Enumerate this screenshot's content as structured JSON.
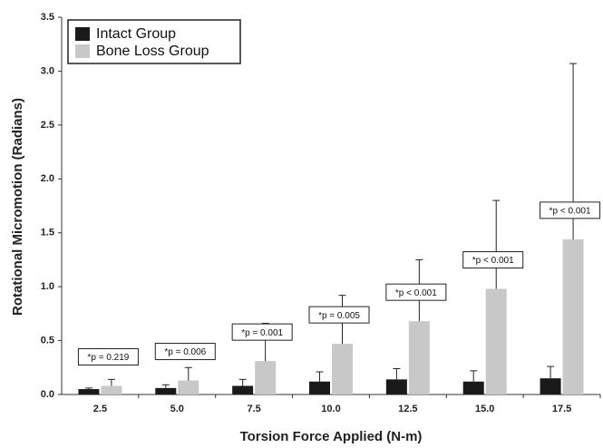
{
  "chart_data": {
    "type": "bar",
    "x_label": "Torsion Force Applied (N-m)",
    "y_label": "Rotational Micromotion (Radians)",
    "categories": [
      "2.5",
      "5.0",
      "7.5",
      "10.0",
      "12.5",
      "15.0",
      "17.5"
    ],
    "series": [
      {
        "name": "Intact Group",
        "color": "#1a1a1a",
        "values": [
          0.05,
          0.06,
          0.08,
          0.12,
          0.14,
          0.12,
          0.15
        ],
        "errors": [
          0.01,
          0.03,
          0.06,
          0.09,
          0.1,
          0.1,
          0.11
        ]
      },
      {
        "name": "Bone Loss Group",
        "color": "#c8c8c8",
        "values": [
          0.08,
          0.13,
          0.31,
          0.47,
          0.68,
          0.98,
          1.44
        ],
        "errors": [
          0.06,
          0.12,
          0.35,
          0.45,
          0.57,
          0.82,
          1.63
        ]
      }
    ],
    "annotations": [
      "*p = 0.219",
      "*p = 0.006",
      "*p = 0.001",
      "*p = 0.005",
      "*p < 0.001",
      "*p < 0.001",
      "*p < 0.001"
    ],
    "ylim": [
      0,
      3.5
    ],
    "yticks": [
      {
        "value": 0,
        "label": "0.0"
      },
      0.5,
      {
        "value": 1,
        "label": "1.0"
      },
      1.5,
      {
        "value": 2,
        "label": "2.0"
      },
      2.5,
      {
        "value": 3,
        "label": "3.0"
      },
      3.5
    ],
    "legend": "upper left",
    "grid": false
  }
}
